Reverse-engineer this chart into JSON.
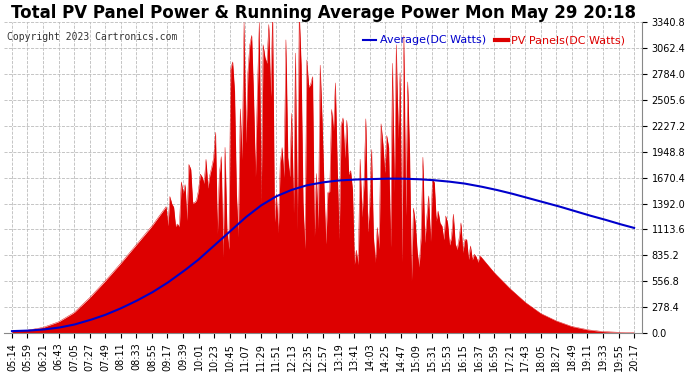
{
  "title": "Total PV Panel Power & Running Average Power Mon May 29 20:18",
  "copyright": "Copyright 2023 Cartronics.com",
  "legend_avg": "Average(DC Watts)",
  "legend_pv": "PV Panels(DC Watts)",
  "ymax": 3340.8,
  "ymin": 0.0,
  "yticks": [
    0.0,
    278.4,
    556.8,
    835.2,
    1113.6,
    1392.0,
    1670.4,
    1948.8,
    2227.2,
    2505.6,
    2784.0,
    3062.4,
    3340.8
  ],
  "background_color": "#ffffff",
  "grid_color": "#bbbbbb",
  "pv_color": "#dd0000",
  "avg_color": "#0000cc",
  "title_fontsize": 12,
  "copy_fontsize": 7,
  "tick_fontsize": 7,
  "legend_fontsize": 8,
  "x_times": [
    "05:14",
    "05:59",
    "06:21",
    "06:43",
    "07:05",
    "07:27",
    "07:49",
    "08:11",
    "08:33",
    "08:55",
    "09:17",
    "09:39",
    "10:01",
    "10:23",
    "10:45",
    "11:07",
    "11:29",
    "11:51",
    "12:13",
    "12:35",
    "12:57",
    "13:19",
    "13:41",
    "14:03",
    "14:25",
    "14:47",
    "15:09",
    "15:31",
    "15:53",
    "16:15",
    "16:37",
    "16:59",
    "17:21",
    "17:43",
    "18:05",
    "18:27",
    "18:49",
    "19:11",
    "19:33",
    "19:55",
    "20:17"
  ],
  "pv_base": [
    20,
    30,
    60,
    120,
    220,
    380,
    560,
    750,
    950,
    1150,
    1380,
    1650,
    1900,
    2200,
    2550,
    2820,
    3050,
    3200,
    3100,
    2950,
    2750,
    2500,
    2300,
    2100,
    2050,
    1950,
    1800,
    1600,
    1350,
    1100,
    850,
    650,
    480,
    330,
    210,
    130,
    70,
    35,
    15,
    7,
    3
  ],
  "avg_values": [
    20,
    25,
    37,
    57,
    90,
    138,
    195,
    265,
    345,
    435,
    540,
    660,
    790,
    940,
    1090,
    1240,
    1370,
    1470,
    1540,
    1590,
    1620,
    1640,
    1650,
    1655,
    1660,
    1660,
    1655,
    1645,
    1630,
    1610,
    1580,
    1545,
    1505,
    1460,
    1415,
    1370,
    1320,
    1270,
    1225,
    1175,
    1130
  ],
  "figsize": [
    6.9,
    3.75
  ],
  "dpi": 100
}
